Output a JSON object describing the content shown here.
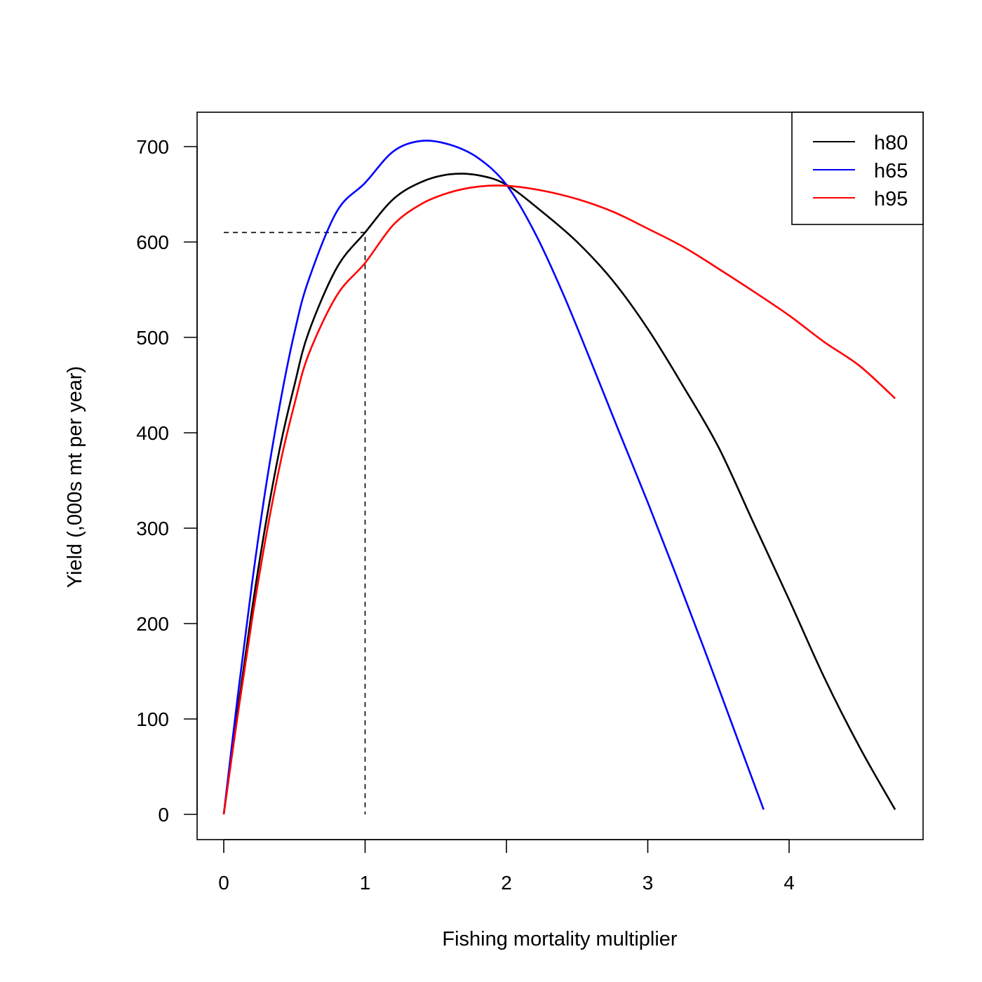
{
  "chart_data": {
    "type": "line",
    "xlabel": "Fishing mortality multiplier",
    "ylabel": "Yield (,000s mt per year)",
    "xlim": [
      0,
      4.95
    ],
    "ylim": [
      0,
      735
    ],
    "xticks": [
      "0",
      "1",
      "2",
      "3",
      "4"
    ],
    "yticks": [
      "0",
      "100",
      "200",
      "300",
      "400",
      "500",
      "600",
      "700"
    ],
    "legend_position": "top-right",
    "grid": false,
    "series": [
      {
        "name": "h80",
        "color": "#000000",
        "x": [
          0,
          0.1,
          0.2,
          0.3,
          0.4,
          0.5,
          0.6,
          0.8,
          1.0,
          1.2,
          1.4,
          1.6,
          1.8,
          2.0,
          2.25,
          2.5,
          2.75,
          3.0,
          3.25,
          3.5,
          3.75,
          4.0,
          4.25,
          4.5,
          4.75
        ],
        "y": [
          0,
          110,
          215,
          307,
          386,
          450,
          505,
          573,
          610,
          645,
          663,
          671,
          670,
          660,
          632,
          600,
          560,
          509,
          449,
          385,
          305,
          225,
          143,
          70,
          5
        ]
      },
      {
        "name": "h65",
        "color": "#0000ff",
        "x": [
          0,
          0.1,
          0.2,
          0.3,
          0.4,
          0.5,
          0.6,
          0.8,
          1.0,
          1.2,
          1.4,
          1.6,
          1.8,
          2.0,
          2.2,
          2.4,
          2.6,
          2.8,
          3.0,
          3.2,
          3.4,
          3.6,
          3.82
        ],
        "y": [
          0,
          125,
          242,
          345,
          432,
          505,
          560,
          632,
          662,
          695,
          706,
          702,
          688,
          660,
          610,
          546,
          474,
          400,
          327,
          251,
          173,
          93,
          5
        ]
      },
      {
        "name": "h95",
        "color": "#ff0000",
        "x": [
          0,
          0.1,
          0.2,
          0.3,
          0.4,
          0.5,
          0.6,
          0.8,
          1.0,
          1.2,
          1.4,
          1.6,
          1.8,
          2.0,
          2.25,
          2.5,
          2.75,
          3.0,
          3.25,
          3.5,
          3.75,
          4.0,
          4.25,
          4.5,
          4.75
        ],
        "y": [
          0,
          105,
          204,
          292,
          368,
          430,
          482,
          544,
          578,
          618,
          640,
          652,
          658,
          659,
          654,
          645,
          632,
          614,
          595,
          572,
          548,
          523,
          495,
          470,
          436
        ]
      }
    ],
    "reference_lines": [
      {
        "style": "dashed",
        "color": "#000000",
        "x": [
          0,
          1.0,
          1.0
        ],
        "y": [
          610,
          610,
          0
        ]
      }
    ]
  }
}
